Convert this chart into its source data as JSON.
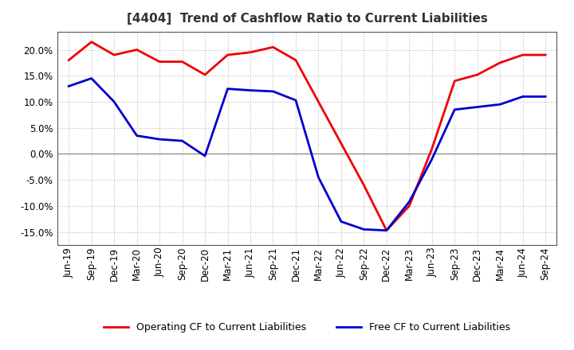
{
  "title": "[4404]  Trend of Cashflow Ratio to Current Liabilities",
  "x_labels": [
    "Jun-19",
    "Sep-19",
    "Dec-19",
    "Mar-20",
    "Jun-20",
    "Sep-20",
    "Dec-20",
    "Mar-21",
    "Jun-21",
    "Sep-21",
    "Dec-21",
    "Mar-22",
    "Jun-22",
    "Sep-22",
    "Dec-22",
    "Mar-23",
    "Jun-23",
    "Sep-23",
    "Dec-23",
    "Mar-24",
    "Jun-24",
    "Sep-24"
  ],
  "operating_cf": [
    0.18,
    0.215,
    0.19,
    0.2,
    0.177,
    0.177,
    0.152,
    0.19,
    0.195,
    0.205,
    0.18,
    0.1,
    0.02,
    -0.06,
    -0.147,
    -0.1,
    0.01,
    0.14,
    0.152,
    0.175,
    0.19,
    0.19
  ],
  "free_cf": [
    0.13,
    0.145,
    0.1,
    0.035,
    0.028,
    0.025,
    -0.004,
    0.125,
    0.122,
    0.12,
    0.103,
    -0.045,
    -0.13,
    -0.145,
    -0.147,
    -0.092,
    -0.01,
    0.085,
    0.09,
    0.095,
    0.11,
    0.11
  ],
  "ylim_min": -0.175,
  "ylim_max": 0.235,
  "yticks": [
    -0.15,
    -0.1,
    -0.05,
    0.0,
    0.05,
    0.1,
    0.15,
    0.2
  ],
  "operating_color": "#ee0000",
  "free_color": "#0000cc",
  "legend_operating": "Operating CF to Current Liabilities",
  "legend_free": "Free CF to Current Liabilities",
  "background_color": "#ffffff",
  "grid_color": "#bbbbbb",
  "title_fontsize": 11,
  "tick_fontsize": 8.5,
  "legend_fontsize": 9
}
